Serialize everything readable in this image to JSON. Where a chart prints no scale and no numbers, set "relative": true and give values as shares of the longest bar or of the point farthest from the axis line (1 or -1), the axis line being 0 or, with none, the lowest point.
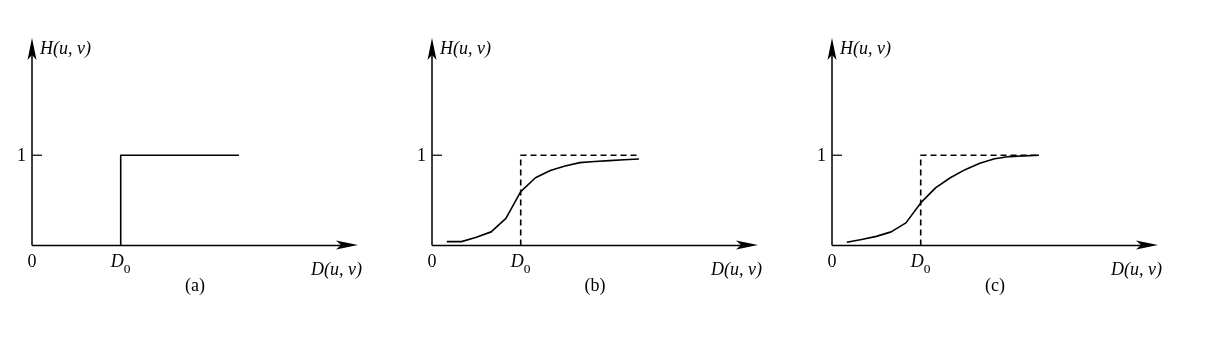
{
  "chart_data": [
    {
      "type": "line",
      "title": "(a)",
      "xlabel": "D(u, v)",
      "ylabel": "H(u, v)",
      "relative": true,
      "legend": false,
      "marker": "none",
      "categories": [
        "0",
        null,
        null,
        null,
        null,
        null,
        "D$_{0}$",
        null,
        null,
        null,
        null,
        null,
        null,
        null,
        null
      ],
      "annotations": [
        "1"
      ],
      "series": [
        {
          "type": "step",
          "color": "#000000",
          "line_style": "solid",
          "values": [
            null,
            null,
            null,
            null,
            null,
            null,
            0,
            1,
            1,
            1,
            1,
            1,
            1,
            1,
            1
          ]
        }
      ]
    },
    {
      "type": "line",
      "title": "(b)",
      "xlabel": "D(u, v)",
      "ylabel": "H(u, v)",
      "relative": true,
      "legend": false,
      "marker": "none",
      "categories": [
        "0",
        null,
        null,
        null,
        null,
        null,
        "D$_{0}$",
        null,
        null,
        null,
        null,
        null,
        null,
        null,
        null
      ],
      "annotations": [
        "1"
      ],
      "series": [
        {
          "type": "step",
          "color": "#000000",
          "line_style": "dashed",
          "values": [
            null,
            null,
            null,
            null,
            null,
            null,
            0,
            1,
            1,
            1,
            1,
            1,
            1,
            1,
            1
          ]
        },
        {
          "color": "#000000",
          "line_style": "solid",
          "values": [
            null,
            0.042,
            0.042,
            0.09,
            0.15,
            0.3,
            0.596,
            0.75,
            0.83,
            0.88,
            0.918,
            0.93,
            0.94,
            0.95,
            0.958
          ]
        }
      ]
    },
    {
      "type": "line",
      "title": "(c)",
      "xlabel": "D(u, v)",
      "ylabel": "H(u, v)",
      "relative": true,
      "legend": false,
      "marker": "none",
      "categories": [
        "0",
        null,
        null,
        null,
        null,
        null,
        "D$_{0}$",
        null,
        null,
        null,
        null,
        null,
        null,
        null,
        null
      ],
      "annotations": [
        "1"
      ],
      "series": [
        {
          "type": "step",
          "color": "#000000",
          "line_style": "dashed",
          "values": [
            null,
            null,
            null,
            null,
            null,
            null,
            0,
            1,
            1,
            1,
            1,
            1,
            1,
            1,
            1
          ]
        },
        {
          "color": "#000000",
          "line_style": "solid",
          "values": [
            null,
            0.035,
            0.065,
            0.1,
            0.15,
            0.25,
            0.471,
            0.638,
            0.75,
            0.84,
            0.91,
            0.96,
            0.985,
            0.993,
            1.0
          ]
        }
      ]
    }
  ]
}
